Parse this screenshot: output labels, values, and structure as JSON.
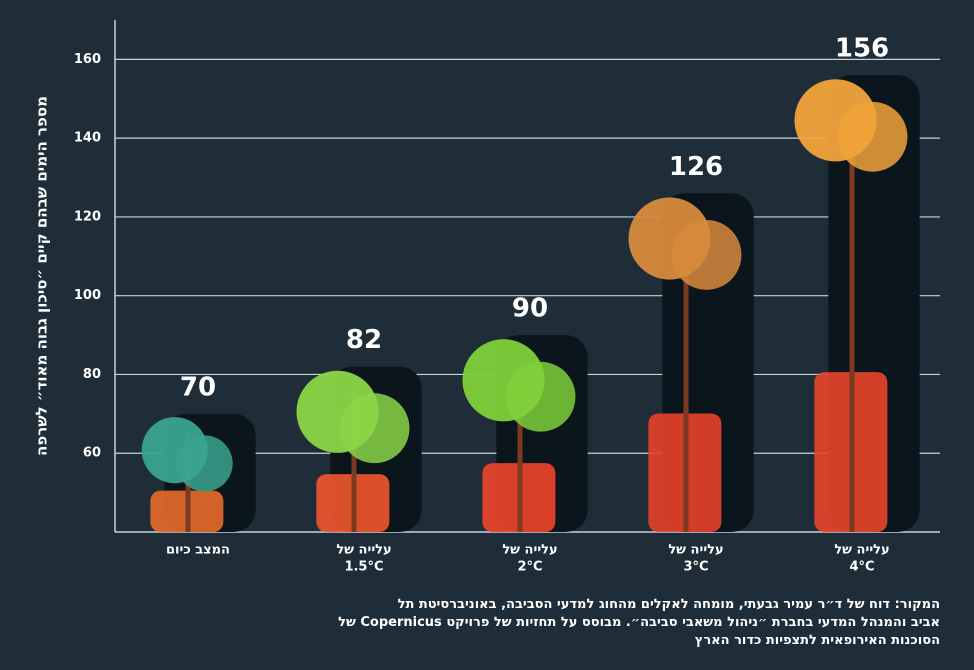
{
  "chart_data": {
    "type": "bar",
    "y_label": "מספר הימים שבהם קיים ״סיכון גבוה מאוד״ לשרפה",
    "categories": [
      [
        "המצב כיום"
      ],
      [
        "עלייה של",
        "1.5°C"
      ],
      [
        "עלייה של",
        "2°C"
      ],
      [
        "עלייה של",
        "3°C"
      ],
      [
        "עלייה של",
        "4°C"
      ]
    ],
    "values": [
      70,
      82,
      90,
      126,
      156
    ],
    "color": "#0a151c",
    "ylim": [
      40,
      170
    ],
    "yticks": [
      60,
      80,
      100,
      120,
      140,
      160
    ],
    "grid": true,
    "source": [
      "המקור: דוח של ד״ר עמיר גבעתי, מומחה לאקלים מהחוג למדעי הסביבה, באוניברסיטת תל",
      "אביב והמנהל המדעי בחברת ״ניהול משאבי סביבה״. מבוסס על תחזיות של פרויקט Copernicus של",
      "הסוכנות האירופאית לתצפיות כדור הארץ"
    ]
  }
}
